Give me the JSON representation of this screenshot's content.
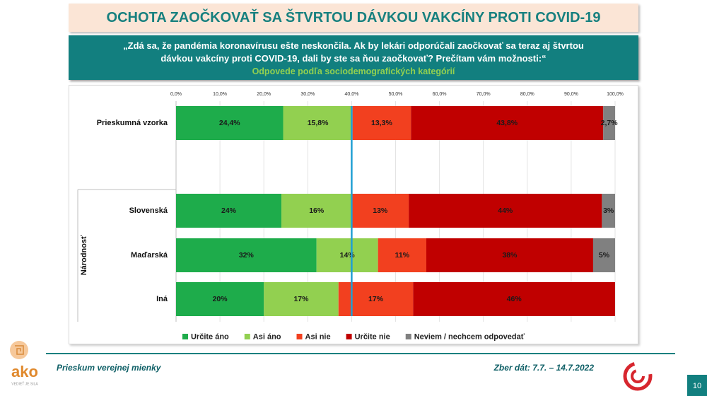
{
  "header": {
    "title": "OCHOTA ZAOČKOVAŤ SA ŠTVRTOU DÁVKOU VAKCÍNY PROTI COVID-19",
    "question": "„Zdá sa, že pandémia koronavírusu ešte neskončila. Ak by lekári odporúčali zaočkovať sa teraz aj štvrtou dávkou vakcíny proti COVID-19, dali by ste sa ňou zaočkovať? Prečítam vám možnosti:“",
    "subtitle": "Odpovede podľa sociodemografických kategórií"
  },
  "chart_data": {
    "type": "bar",
    "orientation": "horizontal",
    "stacked": true,
    "categories": [
      "Prieskumná vzorka",
      "Slovenská",
      "Maďarská",
      "Iná"
    ],
    "group_label": "Národnosť",
    "xlim": [
      0,
      100
    ],
    "xticks": [
      {
        "value": 0,
        "label": "0,0%"
      },
      {
        "value": 10,
        "label": "10,0%"
      },
      {
        "value": 20,
        "label": "20,0%"
      },
      {
        "value": 30,
        "label": "30,0%"
      },
      {
        "value": 40,
        "label": "40,0%"
      },
      {
        "value": 50,
        "label": "50,0%"
      },
      {
        "value": 60,
        "label": "60,0%"
      },
      {
        "value": 70,
        "label": "70,0%"
      },
      {
        "value": 80,
        "label": "80,0%"
      },
      {
        "value": 90,
        "label": "90,0%"
      },
      {
        "value": 100,
        "label": "100,0%"
      }
    ],
    "grid": true,
    "reference_line": {
      "value": 40,
      "color": "#1f9fd4"
    },
    "legend": "bottom",
    "series": [
      {
        "name": "Určite áno",
        "color": "#1eac4b",
        "values": [
          24.4,
          24,
          32,
          20
        ],
        "value_labels": [
          "24,4%",
          "24%",
          "32%",
          "20%"
        ]
      },
      {
        "name": "Asi áno",
        "color": "#92d050",
        "values": [
          15.8,
          16,
          14,
          17
        ],
        "value_labels": [
          "15,8%",
          "16%",
          "14%",
          "17%"
        ]
      },
      {
        "name": "Asi nie",
        "color": "#f2401f",
        "values": [
          13.3,
          13,
          11,
          17
        ],
        "value_labels": [
          "13,3%",
          "13%",
          "11%",
          "17%"
        ]
      },
      {
        "name": "Určite nie",
        "color": "#c00000",
        "values": [
          43.8,
          44,
          38,
          46
        ],
        "value_labels": [
          "43,8%",
          "44%",
          "38%",
          "46%"
        ]
      },
      {
        "name": "Neviem / nechcem odpovedať",
        "color": "#808080",
        "values": [
          2.7,
          3,
          5,
          null
        ],
        "value_labels": [
          "2,7%",
          "3%",
          "5%",
          null
        ]
      }
    ]
  },
  "footer": {
    "left": "Prieskum verejnej mienky",
    "right": "Zber dát: 7.7. – 14.7.2022",
    "page": "10",
    "logo": "ako",
    "logo_tagline": "VEDIEŤ JE SILA"
  }
}
